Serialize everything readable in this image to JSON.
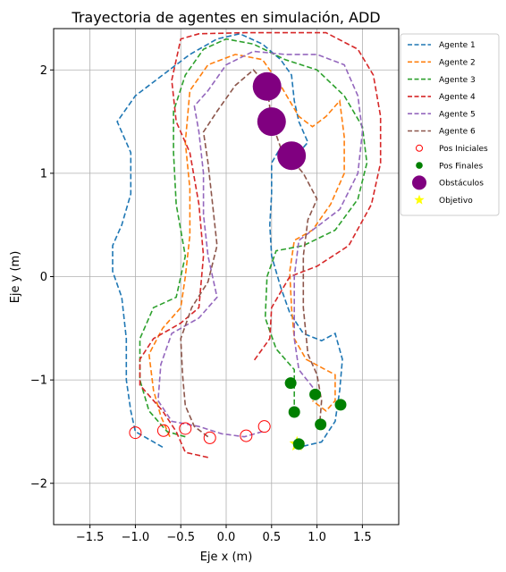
{
  "chart_data": {
    "type": "line",
    "title": "Trayectoria de agentes en simulación, ADD",
    "xlabel": "Eje x (m)",
    "ylabel": "Eje y (m)",
    "xlim": [
      -1.9,
      1.9
    ],
    "ylim": [
      -2.4,
      2.4
    ],
    "xticks": [
      -1.5,
      -1.0,
      -0.5,
      0.0,
      0.5,
      1.0,
      1.5
    ],
    "xtick_labels": [
      "−1.5",
      "−1.0",
      "−0.5",
      "0.0",
      "0.5",
      "1.0",
      "1.5"
    ],
    "yticks": [
      -2,
      -1,
      0,
      1,
      2
    ],
    "ytick_labels": [
      "−2",
      "−1",
      "0",
      "1",
      "2"
    ],
    "grid": true,
    "legend_position": "outside-right-top",
    "series": [
      {
        "name": "Agente 1",
        "color": "#1f77b4",
        "points": [
          [
            -0.7,
            -1.65
          ],
          [
            -0.9,
            -1.55
          ],
          [
            -1.0,
            -1.5
          ],
          [
            -1.05,
            -1.3
          ],
          [
            -1.1,
            -1.0
          ],
          [
            -1.1,
            -0.6
          ],
          [
            -1.15,
            -0.2
          ],
          [
            -1.25,
            0.05
          ],
          [
            -1.25,
            0.3
          ],
          [
            -1.15,
            0.5
          ],
          [
            -1.05,
            0.8
          ],
          [
            -1.05,
            1.2
          ],
          [
            -1.2,
            1.5
          ],
          [
            -1.0,
            1.75
          ],
          [
            -0.7,
            1.95
          ],
          [
            -0.4,
            2.15
          ],
          [
            -0.1,
            2.3
          ],
          [
            0.15,
            2.35
          ],
          [
            0.4,
            2.25
          ],
          [
            0.6,
            2.1
          ],
          [
            0.72,
            1.95
          ],
          [
            0.75,
            1.7
          ],
          [
            0.8,
            1.5
          ],
          [
            0.9,
            1.3
          ],
          [
            0.75,
            1.15
          ],
          [
            0.6,
            1.25
          ],
          [
            0.5,
            1.1
          ],
          [
            0.5,
            0.8
          ],
          [
            0.48,
            0.5
          ],
          [
            0.5,
            0.2
          ],
          [
            0.6,
            -0.1
          ],
          [
            0.7,
            -0.35
          ],
          [
            0.85,
            -0.55
          ],
          [
            1.05,
            -0.62
          ],
          [
            1.2,
            -0.55
          ],
          [
            1.28,
            -0.8
          ],
          [
            1.25,
            -1.1
          ],
          [
            1.2,
            -1.4
          ],
          [
            1.05,
            -1.6
          ],
          [
            0.8,
            -1.65
          ]
        ]
      },
      {
        "name": "Agente 2",
        "color": "#ff7f0e",
        "points": [
          [
            -0.62,
            -1.55
          ],
          [
            -0.72,
            -1.35
          ],
          [
            -0.8,
            -1.1
          ],
          [
            -0.85,
            -0.75
          ],
          [
            -0.7,
            -0.5
          ],
          [
            -0.5,
            -0.3
          ],
          [
            -0.45,
            0.0
          ],
          [
            -0.4,
            0.4
          ],
          [
            -0.4,
            0.85
          ],
          [
            -0.45,
            1.3
          ],
          [
            -0.4,
            1.8
          ],
          [
            -0.2,
            2.05
          ],
          [
            0.1,
            2.15
          ],
          [
            0.4,
            2.1
          ],
          [
            0.6,
            1.85
          ],
          [
            0.8,
            1.55
          ],
          [
            0.95,
            1.45
          ],
          [
            1.1,
            1.55
          ],
          [
            1.25,
            1.7
          ],
          [
            1.3,
            1.35
          ],
          [
            1.3,
            1.0
          ],
          [
            1.15,
            0.7
          ],
          [
            0.95,
            0.45
          ],
          [
            0.75,
            0.35
          ],
          [
            0.7,
            0.05
          ],
          [
            0.72,
            -0.3
          ],
          [
            0.75,
            -0.6
          ],
          [
            0.88,
            -0.8
          ],
          [
            1.05,
            -0.88
          ],
          [
            1.2,
            -0.95
          ],
          [
            1.2,
            -1.2
          ],
          [
            1.1,
            -1.3
          ],
          [
            0.95,
            -1.2
          ]
        ]
      },
      {
        "name": "Agente 3",
        "color": "#2ca02c",
        "points": [
          [
            -0.45,
            -1.55
          ],
          [
            -0.65,
            -1.5
          ],
          [
            -0.85,
            -1.3
          ],
          [
            -0.95,
            -1.0
          ],
          [
            -0.95,
            -0.6
          ],
          [
            -0.8,
            -0.3
          ],
          [
            -0.55,
            -0.2
          ],
          [
            -0.45,
            0.2
          ],
          [
            -0.55,
            0.7
          ],
          [
            -0.58,
            1.2
          ],
          [
            -0.58,
            1.6
          ],
          [
            -0.45,
            1.95
          ],
          [
            -0.25,
            2.2
          ],
          [
            0.0,
            2.3
          ],
          [
            0.3,
            2.25
          ],
          [
            0.65,
            2.1
          ],
          [
            1.0,
            2.0
          ],
          [
            1.3,
            1.75
          ],
          [
            1.5,
            1.45
          ],
          [
            1.55,
            1.1
          ],
          [
            1.45,
            0.75
          ],
          [
            1.2,
            0.45
          ],
          [
            0.85,
            0.3
          ],
          [
            0.55,
            0.25
          ],
          [
            0.45,
            0.0
          ],
          [
            0.43,
            -0.4
          ],
          [
            0.55,
            -0.7
          ],
          [
            0.75,
            -0.9
          ],
          [
            0.75,
            -1.1
          ],
          [
            0.75,
            -1.3
          ]
        ]
      },
      {
        "name": "Agente 4",
        "color": "#d62728",
        "points": [
          [
            -0.2,
            -1.75
          ],
          [
            -0.45,
            -1.7
          ],
          [
            -0.55,
            -1.5
          ],
          [
            -0.7,
            -1.3
          ],
          [
            -0.95,
            -1.05
          ],
          [
            -0.95,
            -0.8
          ],
          [
            -0.8,
            -0.6
          ],
          [
            -0.5,
            -0.45
          ],
          [
            -0.3,
            -0.3
          ],
          [
            -0.25,
            0.2
          ],
          [
            -0.3,
            0.7
          ],
          [
            -0.4,
            1.2
          ],
          [
            -0.55,
            1.5
          ],
          [
            -0.6,
            1.9
          ],
          [
            -0.5,
            2.3
          ],
          [
            -0.3,
            2.35
          ],
          [
            0.2,
            2.36
          ],
          [
            0.6,
            2.36
          ],
          [
            1.1,
            2.36
          ],
          [
            1.45,
            2.2
          ],
          [
            1.62,
            1.95
          ],
          [
            1.7,
            1.55
          ],
          [
            1.7,
            1.1
          ],
          [
            1.6,
            0.7
          ],
          [
            1.35,
            0.3
          ],
          [
            1.0,
            0.1
          ],
          [
            0.7,
            0.0
          ],
          [
            0.5,
            -0.3
          ],
          [
            0.48,
            -0.6
          ],
          [
            0.3,
            -0.82
          ]
        ]
      },
      {
        "name": "Agente 5",
        "color": "#9467bd",
        "points": [
          [
            0.4,
            -1.5
          ],
          [
            0.2,
            -1.55
          ],
          [
            -0.05,
            -1.52
          ],
          [
            -0.3,
            -1.45
          ],
          [
            -0.6,
            -1.4
          ],
          [
            -0.75,
            -1.2
          ],
          [
            -0.72,
            -0.85
          ],
          [
            -0.6,
            -0.55
          ],
          [
            -0.3,
            -0.4
          ],
          [
            -0.1,
            -0.2
          ],
          [
            -0.2,
            0.2
          ],
          [
            -0.25,
            0.6
          ],
          [
            -0.25,
            1.0
          ],
          [
            -0.3,
            1.4
          ],
          [
            -0.35,
            1.65
          ],
          [
            -0.2,
            1.8
          ],
          [
            0.0,
            2.05
          ],
          [
            0.3,
            2.18
          ],
          [
            0.65,
            2.15
          ],
          [
            1.0,
            2.15
          ],
          [
            1.3,
            2.05
          ],
          [
            1.45,
            1.75
          ],
          [
            1.5,
            1.4
          ],
          [
            1.45,
            1.0
          ],
          [
            1.25,
            0.65
          ],
          [
            0.95,
            0.45
          ],
          [
            0.8,
            0.35
          ],
          [
            0.75,
            0.0
          ],
          [
            0.75,
            -0.6
          ],
          [
            0.8,
            -0.9
          ],
          [
            0.98,
            -1.1
          ]
        ]
      },
      {
        "name": "Agente 6",
        "color": "#8c564b",
        "points": [
          [
            -0.2,
            -1.55
          ],
          [
            -0.35,
            -1.45
          ],
          [
            -0.45,
            -1.25
          ],
          [
            -0.48,
            -0.95
          ],
          [
            -0.5,
            -0.6
          ],
          [
            -0.38,
            -0.3
          ],
          [
            -0.2,
            -0.05
          ],
          [
            -0.1,
            0.3
          ],
          [
            -0.15,
            0.7
          ],
          [
            -0.2,
            1.1
          ],
          [
            -0.25,
            1.4
          ],
          [
            -0.1,
            1.6
          ],
          [
            0.1,
            1.85
          ],
          [
            0.3,
            2.0
          ],
          [
            0.45,
            1.85
          ],
          [
            0.5,
            1.5
          ],
          [
            0.6,
            1.25
          ],
          [
            0.85,
            1.0
          ],
          [
            1.0,
            0.75
          ],
          [
            0.9,
            0.55
          ],
          [
            0.85,
            0.2
          ],
          [
            0.85,
            -0.3
          ],
          [
            0.9,
            -0.75
          ],
          [
            1.0,
            -0.95
          ],
          [
            1.05,
            -1.2
          ],
          [
            1.03,
            -1.43
          ]
        ]
      }
    ],
    "start_positions": [
      [
        -1.0,
        -1.51
      ],
      [
        -0.69,
        -1.49
      ],
      [
        -0.45,
        -1.47
      ],
      [
        -0.18,
        -1.56
      ],
      [
        0.22,
        -1.54
      ],
      [
        0.42,
        -1.45
      ]
    ],
    "end_positions": [
      [
        0.71,
        -1.03
      ],
      [
        0.98,
        -1.14
      ],
      [
        1.26,
        -1.24
      ],
      [
        0.75,
        -1.31
      ],
      [
        1.04,
        -1.43
      ],
      [
        0.8,
        -1.62
      ]
    ],
    "obstacles": [
      [
        0.45,
        1.84
      ],
      [
        0.5,
        1.5
      ],
      [
        0.72,
        1.17
      ]
    ],
    "goal": [
      0.78,
      -1.62
    ],
    "legend": [
      {
        "label": "Agente 1",
        "kind": "dashed-line",
        "color": "#1f77b4"
      },
      {
        "label": "Agente 2",
        "kind": "dashed-line",
        "color": "#ff7f0e"
      },
      {
        "label": "Agente 3",
        "kind": "dashed-line",
        "color": "#2ca02c"
      },
      {
        "label": "Agente 4",
        "kind": "dashed-line",
        "color": "#d62728"
      },
      {
        "label": "Agente 5",
        "kind": "dashed-line",
        "color": "#9467bd"
      },
      {
        "label": "Agente 6",
        "kind": "dashed-line",
        "color": "#8c564b"
      },
      {
        "label": "Pos Iniciales",
        "kind": "open-circle",
        "color": "#ff0000"
      },
      {
        "label": "Pos Finales",
        "kind": "filled-circle",
        "color": "#008000"
      },
      {
        "label": "Obstáculos",
        "kind": "big-circle",
        "color": "#800080"
      },
      {
        "label": "Objetivo",
        "kind": "star",
        "color": "#ffff00"
      }
    ]
  }
}
